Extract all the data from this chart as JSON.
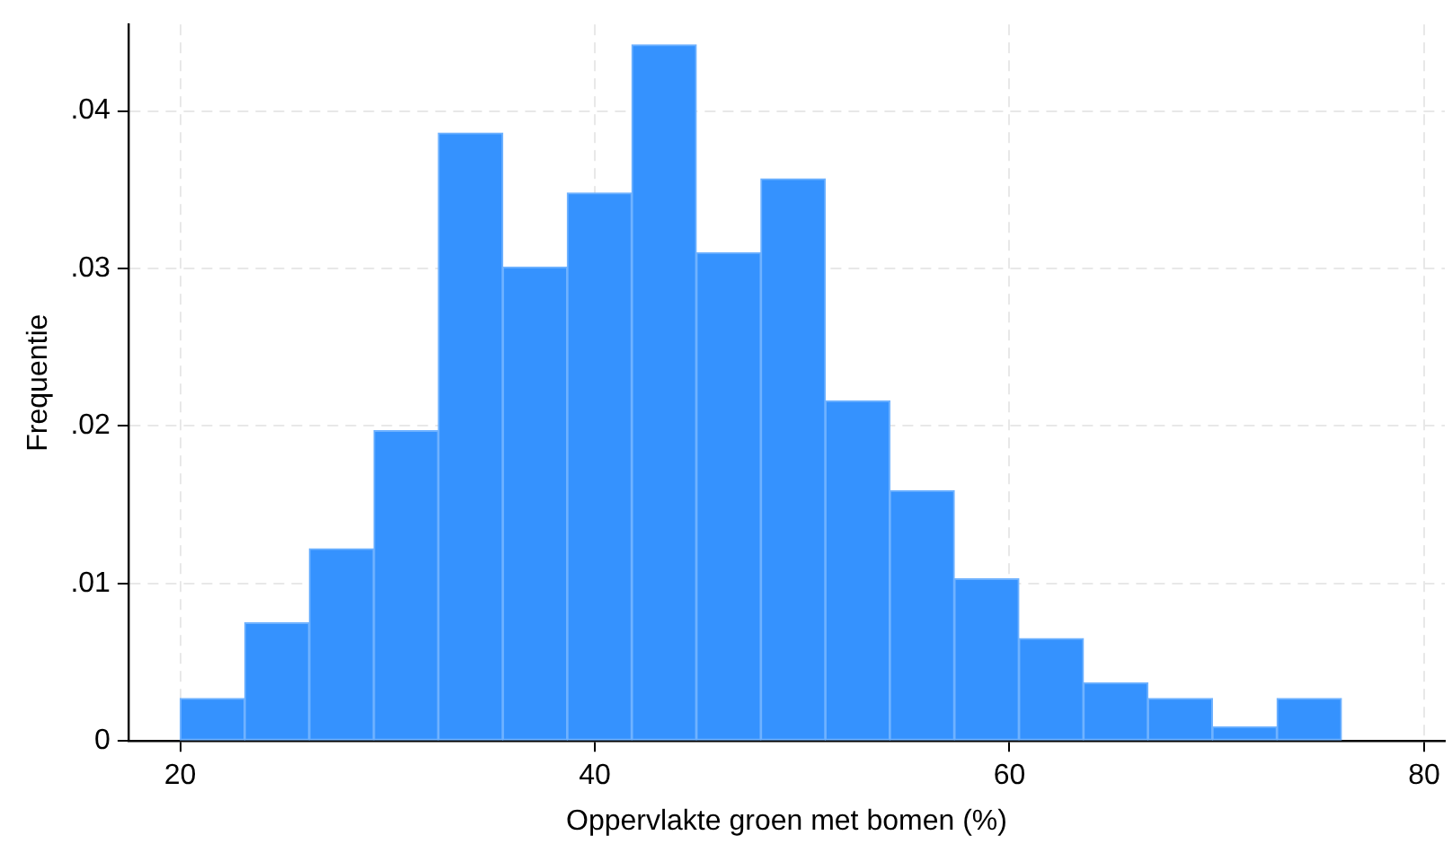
{
  "chart_data": {
    "type": "histogram",
    "xlabel": "Oppervlakte groen met bomen (%)",
    "ylabel": "Frequentie",
    "bins": [
      20,
      23.11,
      26.22,
      29.34,
      32.45,
      35.56,
      38.67,
      41.78,
      44.9,
      48.01,
      51.12,
      54.23,
      57.34,
      60.46,
      63.57,
      66.68,
      69.79,
      72.9,
      76.02
    ],
    "values": [
      0.0027,
      0.0075,
      0.0122,
      0.0197,
      0.0386,
      0.0301,
      0.0348,
      0.0442,
      0.031,
      0.0357,
      0.0216,
      0.0159,
      0.0103,
      0.0065,
      0.0037,
      0.0027,
      0.0009,
      0.0027
    ],
    "color": "#3592fe",
    "xlim": [
      17.5,
      81
    ],
    "xticks": [
      20,
      40,
      60,
      80
    ],
    "ylim": [
      0,
      0.0455
    ],
    "yticks": [
      {
        "value": 0,
        "label": "0"
      },
      {
        "value": 0.01,
        "label": ".01"
      },
      {
        "value": 0.02,
        "label": ".02"
      },
      {
        "value": 0.03,
        "label": ".03"
      },
      {
        "value": 0.04,
        "label": ".04"
      }
    ],
    "grid": true
  }
}
